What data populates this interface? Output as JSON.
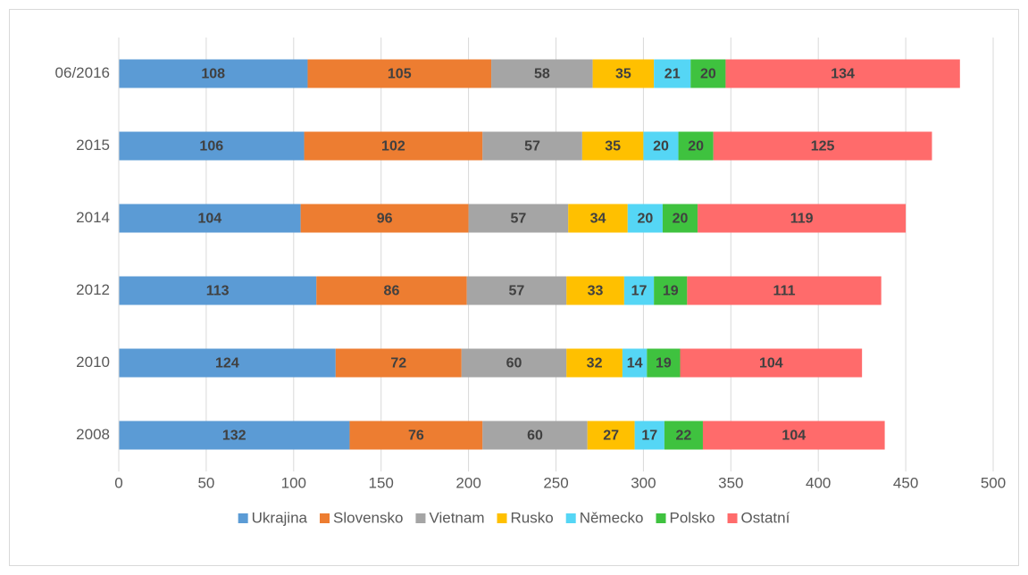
{
  "chart_data": {
    "type": "stacked-barh",
    "categories": [
      "06/2016",
      "2015",
      "2014",
      "2012",
      "2010",
      "2008"
    ],
    "series": [
      {
        "name": "Ukrajina",
        "color": "#5b9bd5",
        "values": [
          108,
          106,
          104,
          113,
          124,
          132
        ]
      },
      {
        "name": "Slovensko",
        "color": "#ed7d31",
        "values": [
          105,
          102,
          96,
          86,
          72,
          76
        ]
      },
      {
        "name": "Vietnam",
        "color": "#a5a5a5",
        "values": [
          58,
          57,
          57,
          57,
          60,
          60
        ]
      },
      {
        "name": "Rusko",
        "color": "#ffc000",
        "values": [
          35,
          35,
          34,
          33,
          32,
          27
        ]
      },
      {
        "name": "Německo",
        "color": "#55d6f5",
        "values": [
          21,
          20,
          20,
          17,
          14,
          17
        ]
      },
      {
        "name": "Polsko",
        "color": "#3fc23f",
        "values": [
          20,
          20,
          20,
          19,
          19,
          22
        ]
      },
      {
        "name": "Ostatní",
        "color": "#ff6b6b",
        "values": [
          134,
          125,
          119,
          111,
          104,
          104
        ]
      }
    ],
    "xlim": [
      0,
      500
    ],
    "xticks": [
      0,
      50,
      100,
      150,
      200,
      250,
      300,
      350,
      400,
      450,
      500
    ],
    "grid": true,
    "legend": "bottom"
  }
}
